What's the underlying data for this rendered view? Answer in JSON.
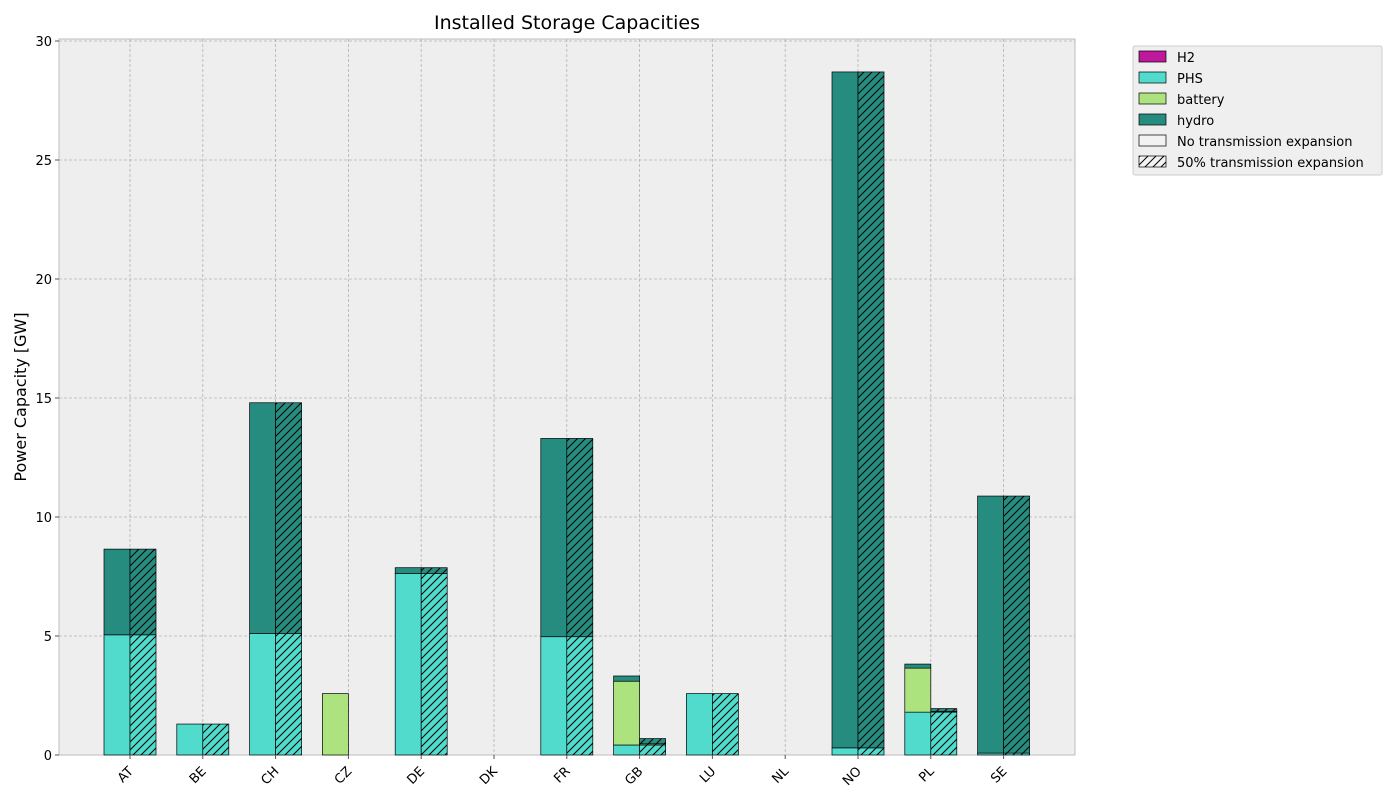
{
  "chart_data": {
    "type": "bar",
    "title": "Installed Storage Capacities",
    "xlabel": "",
    "ylabel": "Power Capacity [GW]",
    "ylim": [
      0,
      30
    ],
    "yticks": [
      0,
      5,
      10,
      15,
      20,
      25,
      30
    ],
    "grid": true,
    "stacked": true,
    "legend_position": "outside-top-right",
    "categories": [
      "AT",
      "BE",
      "CH",
      "CZ",
      "DE",
      "DK",
      "FR",
      "GB",
      "LU",
      "NL",
      "NO",
      "PL",
      "SE"
    ],
    "technologies": [
      {
        "name": "H2",
        "color": "#c0189c"
      },
      {
        "name": "PHS",
        "color": "#50dbcc"
      },
      {
        "name": "battery",
        "color": "#ace37f"
      },
      {
        "name": "hydro",
        "color": "#268c7f"
      }
    ],
    "scenarios": [
      {
        "name": "No transmission expansion",
        "hatch": false,
        "series": {
          "H2": [
            0,
            0,
            0,
            0,
            0,
            0,
            0,
            0,
            0,
            0,
            0,
            0,
            0
          ],
          "PHS": [
            5.05,
            1.3,
            5.1,
            0,
            7.62,
            0,
            4.97,
            0.42,
            2.58,
            0,
            0.3,
            1.8,
            0.08
          ],
          "battery": [
            0,
            0,
            0,
            2.58,
            0,
            0,
            0,
            2.68,
            0,
            0,
            0,
            1.85,
            0
          ],
          "hydro": [
            3.6,
            0,
            9.7,
            0,
            0.25,
            0,
            8.33,
            0.22,
            0,
            0,
            28.4,
            0.17,
            10.8
          ]
        }
      },
      {
        "name": "50% transmission expansion",
        "hatch": true,
        "series": {
          "H2": [
            0,
            0,
            0,
            0,
            0,
            0,
            0,
            0,
            0,
            0,
            0,
            0,
            0
          ],
          "PHS": [
            5.05,
            1.3,
            5.1,
            0,
            7.62,
            0,
            4.97,
            0.42,
            2.58,
            0,
            0.3,
            1.8,
            0.08
          ],
          "battery": [
            0,
            0,
            0,
            0,
            0,
            0,
            0,
            0.05,
            0,
            0,
            0,
            0.03,
            0
          ],
          "hydro": [
            3.6,
            0,
            9.7,
            0,
            0.25,
            0,
            8.33,
            0.22,
            0,
            0,
            28.4,
            0.12,
            10.8
          ]
        }
      }
    ],
    "colors": {
      "plot_background": "#eeeeee",
      "grid": "#b2b2b2",
      "edge": "#000000"
    }
  }
}
